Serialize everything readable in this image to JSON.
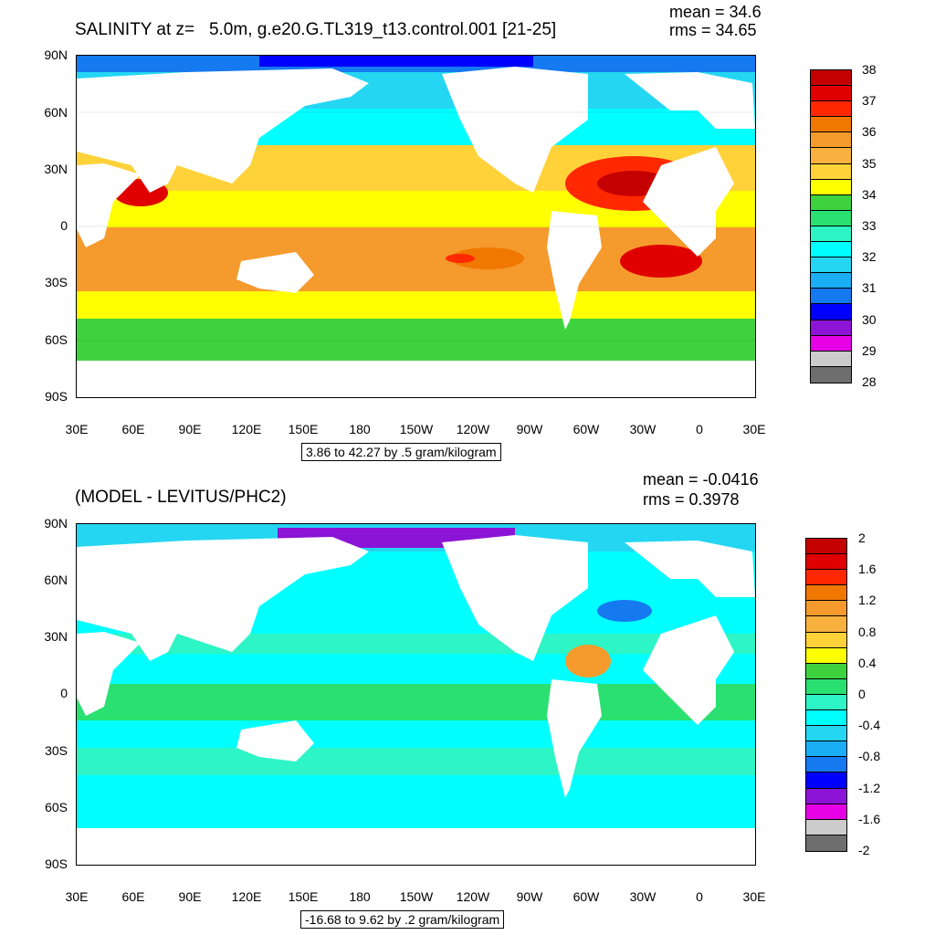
{
  "panels": [
    {
      "title": "SALINITY at z=   5.0m, g.e20.G.TL319_t13.control.001 [21-25]",
      "mean": "mean = 34.6",
      "rms": "rms = 34.65",
      "info": "3.86 to 42.27 by .5 gram/kilogram",
      "colorbar": {
        "labels": [
          "38",
          "37",
          "36",
          "35",
          "34",
          "33",
          "32",
          "31",
          "30",
          "29",
          "28"
        ],
        "colors": [
          "#c40000",
          "#e00000",
          "#ff2800",
          "#f07800",
          "#f59a2c",
          "#f8b13e",
          "#ffd23a",
          "#ffff00",
          "#3fd23f",
          "#2ae070",
          "#2ef5c5",
          "#00ffff",
          "#24d6f2",
          "#1aaef5",
          "#1579f0",
          "#0000ff",
          "#8c14d6",
          "#e600e6",
          "#cccccc",
          "#6e6e6e"
        ]
      }
    },
    {
      "title": "(MODEL - LEVITUS/PHC2)",
      "mean": "mean = -0.0416",
      "rms": "rms = 0.3978",
      "info": "-16.68 to 9.62 by .2 gram/kilogram",
      "colorbar": {
        "labels": [
          "2",
          "1.6",
          "1.2",
          "0.8",
          "0.4",
          "0",
          "-0.4",
          "-0.8",
          "-1.2",
          "-1.6",
          "-2"
        ],
        "colors": [
          "#c40000",
          "#e00000",
          "#ff2800",
          "#f07800",
          "#f59a2c",
          "#f8b13e",
          "#ffd23a",
          "#ffff00",
          "#3fd23f",
          "#2ae070",
          "#2ef5c5",
          "#00ffff",
          "#24d6f2",
          "#1aaef5",
          "#1579f0",
          "#0000ff",
          "#8c14d6",
          "#e600e6",
          "#cccccc",
          "#6e6e6e"
        ]
      }
    }
  ],
  "lat_labels": [
    "90N",
    "60N",
    "30N",
    "0",
    "30S",
    "60S",
    "90S"
  ],
  "lon_labels": [
    "30E",
    "60E",
    "90E",
    "120E",
    "150E",
    "180",
    "150W",
    "120W",
    "90W",
    "60W",
    "30W",
    "0",
    "30E"
  ],
  "colors": {
    "land": "#ffffff",
    "frame": "#000000"
  }
}
